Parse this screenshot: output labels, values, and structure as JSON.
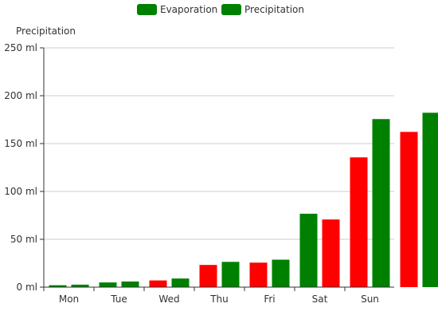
{
  "chart_data": {
    "type": "bar",
    "title": "",
    "xlabel": "",
    "ylabel": "Precipitation",
    "ylim": [
      0,
      250
    ],
    "yticks": [
      0,
      50,
      100,
      150,
      200,
      250
    ],
    "y_unit": "ml",
    "categories": [
      "Mon",
      "Tue",
      "Wed",
      "Thu",
      "Fri",
      "Sat",
      "Sun",
      ""
    ],
    "series": [
      {
        "name": "Evaporation",
        "color": "#008000",
        "values": [
          2.0,
          4.9,
          7.0,
          23.2,
          25.6,
          76.7,
          135.6,
          162.2
        ],
        "bar_colors": [
          "#008000",
          "#008000",
          "#ff0000",
          "#ff0000",
          "#ff0000",
          "#008000",
          "#ff0000",
          "#ff0000"
        ]
      },
      {
        "name": "Precipitation",
        "color": "#008000",
        "values": [
          2.6,
          5.9,
          9.0,
          26.4,
          28.7,
          70.7,
          175.6,
          182.2
        ],
        "bar_colors": [
          "#008000",
          "#008000",
          "#008000",
          "#008000",
          "#008000",
          "#ff0000",
          "#008000",
          "#008000"
        ]
      }
    ],
    "grid": true,
    "legend_position": "top-center"
  }
}
